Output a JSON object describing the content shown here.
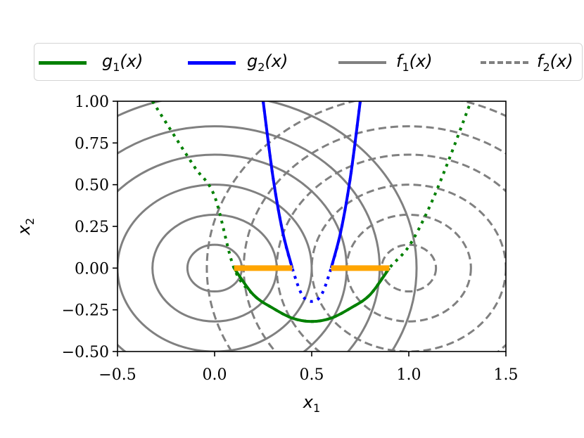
{
  "chart_data": {
    "type": "line",
    "title": "",
    "xlabel": "x_1",
    "ylabel": "x_2",
    "xlim": [
      -0.5,
      1.5
    ],
    "ylim": [
      -0.5,
      1.0
    ],
    "xticks": [
      -0.5,
      0.0,
      0.5,
      1.0,
      1.5
    ],
    "yticks": [
      -0.5,
      -0.25,
      0.0,
      0.25,
      0.5,
      0.75,
      1.0
    ],
    "xtick_labels": [
      "−0.5",
      "0.0",
      "0.5",
      "1.0",
      "1.5"
    ],
    "ytick_labels": [
      "−0.50",
      "−0.25",
      "0.00",
      "0.25",
      "0.50",
      "0.75",
      "1.00"
    ],
    "grid": false,
    "legend": {
      "placement": "top",
      "entries": [
        {
          "key": "g1",
          "base": "g",
          "sub": "1",
          "suffix": "(x)",
          "color": "#008000",
          "style": "solid"
        },
        {
          "key": "g2",
          "base": "g",
          "sub": "2",
          "suffix": "(x)",
          "color": "#0000ff",
          "style": "solid"
        },
        {
          "key": "f1",
          "base": "f",
          "sub": "1",
          "suffix": "(x)",
          "color": "#808080",
          "style": "solid"
        },
        {
          "key": "f2",
          "base": "f",
          "sub": "2",
          "suffix": "(x)",
          "color": "#808080",
          "style": "dashed"
        }
      ]
    },
    "series": [
      {
        "key": "g1",
        "color": "#008000",
        "feasible_x_range": [
          0.1,
          0.9
        ],
        "points": [
          [
            -0.32,
            1.0
          ],
          [
            -0.2,
            0.78
          ],
          [
            -0.1,
            0.6
          ],
          [
            0.0,
            0.43
          ],
          [
            0.1,
            0.0
          ],
          [
            0.2,
            -0.16
          ],
          [
            0.3,
            -0.24
          ],
          [
            0.4,
            -0.3
          ],
          [
            0.5,
            -0.32
          ],
          [
            0.6,
            -0.3
          ],
          [
            0.7,
            -0.24
          ],
          [
            0.8,
            -0.16
          ],
          [
            0.9,
            0.0
          ],
          [
            1.0,
            0.13
          ],
          [
            1.1,
            0.35
          ],
          [
            1.2,
            0.63
          ],
          [
            1.32,
            1.0
          ]
        ]
      },
      {
        "key": "g2",
        "color": "#0000ff",
        "feasible_x_range": [
          0.4,
          0.6
        ],
        "points": [
          [
            0.25,
            1.0
          ],
          [
            0.3,
            0.55
          ],
          [
            0.35,
            0.22
          ],
          [
            0.4,
            0.0
          ],
          [
            0.45,
            -0.16
          ],
          [
            0.5,
            -0.2
          ],
          [
            0.55,
            -0.16
          ],
          [
            0.6,
            0.0
          ],
          [
            0.65,
            0.22
          ],
          [
            0.7,
            0.55
          ],
          [
            0.75,
            1.0
          ]
        ]
      }
    ],
    "contours": [
      {
        "key": "f1",
        "center": [
          0.0,
          0.0
        ],
        "style": "solid",
        "color": "#808080",
        "radii": [
          0.14,
          0.32,
          0.5,
          0.68,
          0.85,
          1.04
        ]
      },
      {
        "key": "f2",
        "center": [
          1.0,
          0.0
        ],
        "style": "dashed",
        "color": "#808080",
        "radii": [
          0.14,
          0.32,
          0.5,
          0.68,
          0.85,
          1.04
        ]
      }
    ],
    "feasible_segments": [
      {
        "x": [
          0.1,
          0.4
        ],
        "y": 0.0,
        "color": "#ffa500"
      },
      {
        "x": [
          0.6,
          0.9
        ],
        "y": 0.0,
        "color": "#ffa500"
      }
    ]
  }
}
